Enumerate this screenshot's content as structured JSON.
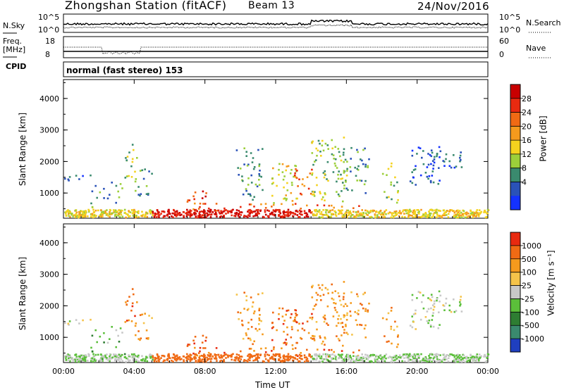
{
  "header": {
    "station_title": "Zhongshan Station (fitACF)",
    "beam": "Beam 13",
    "date": "24/Nov/2016"
  },
  "top_panels": {
    "nsky_label": "N.Sky",
    "nsky_ticks": [
      "10^5",
      "10^0"
    ],
    "nsearch_label": "N.Search",
    "nsearch_ticks": [
      "10^5",
      "10^0"
    ],
    "freq_label_line1": "Freq.",
    "freq_label_line2": "[MHz]",
    "freq_ticks": [
      "18",
      "8"
    ],
    "nave_label": "Nave",
    "nave_ticks": [
      "60",
      "0"
    ],
    "cpid_label": "CPID",
    "cpid_value": "normal (fast stereo) 153"
  },
  "chart_data": [
    {
      "type": "heatmap",
      "panel": "power",
      "ylabel": "Slant Range [km]",
      "y_ticks": [
        1000,
        2000,
        3000,
        4000
      ],
      "ylim": [
        200,
        4600
      ],
      "xlim": [
        0,
        24
      ],
      "colorbar_label": "Power [dB]",
      "colorbar_ticks": [
        "28",
        "24",
        "20",
        "16",
        "12",
        "8",
        "4"
      ],
      "colors": [
        "#1432ff",
        "#2a52b8",
        "#3a8a6e",
        "#9ccf3a",
        "#f4d21e",
        "#f59a1d",
        "#f06a14",
        "#e82a10",
        "#c80000"
      ]
    },
    {
      "type": "heatmap",
      "panel": "velocity",
      "ylabel": "Slant Range [km]",
      "y_ticks": [
        1000,
        2000,
        3000,
        4000
      ],
      "ylim": [
        200,
        4600
      ],
      "xlim": [
        0,
        24
      ],
      "xlabel": "Time UT",
      "x_tick_labels": [
        "00:00",
        "04:00",
        "08:00",
        "12:00",
        "16:00",
        "20:00",
        "00:00"
      ],
      "colorbar_label": "Velocity [m s⁻¹]",
      "colorbar_ticks": [
        "1000",
        "500",
        "100",
        "25",
        "-25",
        "-100",
        "-500",
        "-1000"
      ],
      "colors": [
        "#1f3fbf",
        "#3a8a6e",
        "#2e7d32",
        "#5bbf3a",
        "#c8c8c8",
        "#f5c34a",
        "#f59a1d",
        "#f06a14",
        "#e82a10"
      ]
    }
  ]
}
